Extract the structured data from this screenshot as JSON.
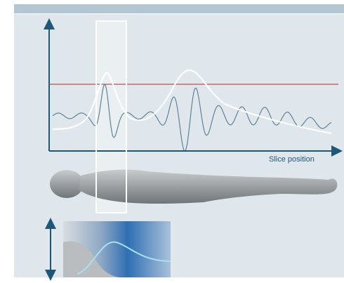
{
  "axis_label": "Slice position"
}
